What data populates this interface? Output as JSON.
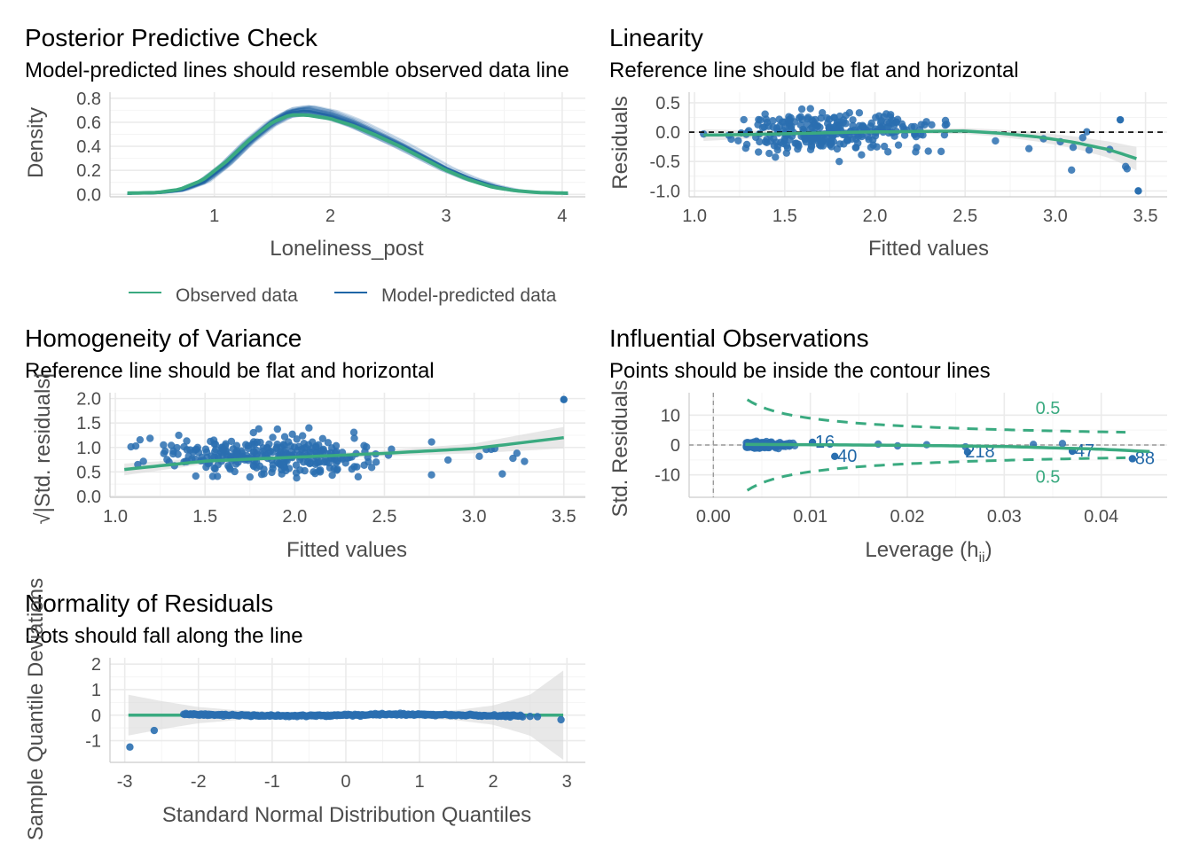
{
  "colors": {
    "observed": "#3aaa80",
    "predicted": "#1f66a6",
    "points": "#2a6fb0",
    "ci_band": "#d9d9d9",
    "contour": "#3aaa80"
  },
  "chart_data": [
    {
      "id": "ppc",
      "type": "line",
      "title": "Posterior Predictive Check",
      "subtitle": "Model-predicted lines should resemble observed data line",
      "xlabel": "Loneliness_post",
      "ylabel": "Density",
      "xlim": [
        0.1,
        4.2
      ],
      "ylim": [
        -0.02,
        0.85
      ],
      "xticks": [
        1,
        2,
        3,
        4
      ],
      "yticks": [
        0.0,
        0.2,
        0.4,
        0.6,
        0.8
      ],
      "ytick_labels": [
        "0.0",
        "0.2",
        "0.4",
        "0.6",
        "0.8"
      ],
      "legend": {
        "position": "bottom",
        "entries": [
          "Observed data",
          "Model-predicted data"
        ]
      },
      "series": [
        {
          "name": "Observed data",
          "x": [
            0.25,
            0.5,
            0.7,
            0.9,
            1.1,
            1.3,
            1.5,
            1.65,
            1.8,
            2.0,
            2.2,
            2.4,
            2.6,
            2.8,
            3.0,
            3.2,
            3.4,
            3.6,
            3.8,
            4.05
          ],
          "y": [
            0.01,
            0.015,
            0.04,
            0.12,
            0.27,
            0.45,
            0.6,
            0.66,
            0.66,
            0.63,
            0.57,
            0.49,
            0.4,
            0.3,
            0.2,
            0.12,
            0.06,
            0.03,
            0.015,
            0.01
          ]
        },
        {
          "name": "Model-predicted data",
          "x": [
            0.25,
            0.5,
            0.7,
            0.9,
            1.1,
            1.3,
            1.5,
            1.65,
            1.8,
            2.0,
            2.2,
            2.4,
            2.6,
            2.8,
            3.0,
            3.2,
            3.4,
            3.6,
            3.8,
            4.05
          ],
          "y": [
            0.005,
            0.01,
            0.03,
            0.1,
            0.25,
            0.44,
            0.6,
            0.68,
            0.7,
            0.66,
            0.59,
            0.5,
            0.41,
            0.31,
            0.21,
            0.13,
            0.07,
            0.03,
            0.015,
            0.005
          ]
        }
      ]
    },
    {
      "id": "linearity",
      "type": "scatter",
      "title": "Linearity",
      "subtitle": "Reference line should be flat and horizontal",
      "xlabel": "Fitted values",
      "ylabel": "Residuals",
      "xlim": [
        0.97,
        3.62
      ],
      "ylim": [
        -1.1,
        0.68
      ],
      "xticks": [
        1.0,
        1.5,
        2.0,
        2.5,
        3.0,
        3.5
      ],
      "xtick_labels": [
        "1.0",
        "1.5",
        "2.0",
        "2.5",
        "3.0",
        "3.5"
      ],
      "yticks": [
        -1.0,
        -0.5,
        0.0,
        0.5
      ],
      "ytick_labels": [
        "-1.0",
        "-0.5",
        "0.0",
        "0.5"
      ],
      "reference_line": 0.0,
      "smooth": {
        "x": [
          1.05,
          1.3,
          1.6,
          1.9,
          2.2,
          2.5,
          2.7,
          2.9,
          3.1,
          3.3,
          3.45
        ],
        "y": [
          -0.05,
          -0.04,
          -0.02,
          0.0,
          0.01,
          0.02,
          -0.02,
          -0.08,
          -0.17,
          -0.3,
          -0.45
        ],
        "band": [
          0.1,
          0.07,
          0.04,
          0.04,
          0.04,
          0.05,
          0.06,
          0.08,
          0.1,
          0.14,
          0.2
        ]
      },
      "points_generated": {
        "n": 300,
        "x_range": [
          1.05,
          3.45
        ],
        "spread": 0.33
      }
    },
    {
      "id": "homogeneity",
      "type": "scatter",
      "title": "Homogeneity of Variance",
      "subtitle": "Reference line should be flat and horizontal",
      "xlabel": "Fitted values",
      "ylabel": "√|Std. residuals|",
      "xlim": [
        0.97,
        3.62
      ],
      "ylim": [
        -0.02,
        2.12
      ],
      "xticks": [
        1.0,
        1.5,
        2.0,
        2.5,
        3.0,
        3.5
      ],
      "xtick_labels": [
        "1.0",
        "1.5",
        "2.0",
        "2.5",
        "3.0",
        "3.5"
      ],
      "yticks": [
        0.0,
        0.5,
        1.0,
        1.5,
        2.0
      ],
      "ytick_labels": [
        "0.0",
        "0.5",
        "1.0",
        "1.5",
        "2.0"
      ],
      "smooth": {
        "x": [
          1.05,
          1.5,
          2.0,
          2.5,
          3.0,
          3.5
        ],
        "y": [
          0.55,
          0.72,
          0.8,
          0.88,
          0.98,
          1.2
        ],
        "band": [
          0.12,
          0.06,
          0.05,
          0.06,
          0.1,
          0.22
        ]
      },
      "points_generated": {
        "n": 300,
        "x_range": [
          1.05,
          3.5
        ],
        "center": 0.85,
        "spread": 0.38
      }
    },
    {
      "id": "influential",
      "type": "scatter",
      "title": "Influential Observations",
      "subtitle": "Points should be inside the contour lines",
      "xlabel": "Leverage (h",
      "xlabel_sub": "ii",
      "xlabel_close": ")",
      "ylabel": "Std. Residuals",
      "xlim": [
        -0.0025,
        0.0468
      ],
      "ylim": [
        -17.5,
        17.5
      ],
      "xticks": [
        0.0,
        0.01,
        0.02,
        0.03,
        0.04
      ],
      "xtick_labels": [
        "0.00",
        "0.01",
        "0.02",
        "0.03",
        "0.04"
      ],
      "yticks": [
        -10,
        0,
        10
      ],
      "ytick_labels": [
        "-10",
        "0",
        "10"
      ],
      "contour_labels": [
        {
          "text": "0.5",
          "x": 0.0345,
          "y": 12.5
        },
        {
          "text": "0.5",
          "x": 0.0345,
          "y": -10.5
        }
      ],
      "labeled_points": [
        {
          "label": "16",
          "x": 0.0115,
          "y": 1.5
        },
        {
          "label": "40",
          "x": 0.0138,
          "y": -3.2
        },
        {
          "label": "218",
          "x": 0.0275,
          "y": -1.8
        },
        {
          "label": "47",
          "x": 0.0383,
          "y": -1.5
        },
        {
          "label": "88",
          "x": 0.0445,
          "y": -4.0
        }
      ],
      "smooth": {
        "x": [
          0.0033,
          0.01,
          0.02,
          0.03,
          0.04,
          0.045
        ],
        "y": [
          0.2,
          0.1,
          -0.1,
          -0.5,
          -1.4,
          -2.2
        ]
      },
      "points_generated": {
        "n": 300,
        "x_range": [
          0.0033,
          0.016
        ],
        "spread": 1.1
      }
    },
    {
      "id": "normality",
      "type": "scatter",
      "title": "Normality of Residuals",
      "subtitle": "Dots should fall along the line",
      "xlabel": "Standard Normal Distribution Quantiles",
      "ylabel": "Sample Quantile Deviations",
      "xlim": [
        -3.2,
        3.25
      ],
      "ylim": [
        -1.85,
        2.25
      ],
      "xticks": [
        -3,
        -2,
        -1,
        0,
        1,
        2,
        3
      ],
      "xtick_labels": [
        "-3",
        "-2",
        "-1",
        "0",
        "1",
        "2",
        "3"
      ],
      "yticks": [
        -1,
        0,
        1,
        2
      ],
      "ytick_labels": [
        "-1",
        "0",
        "1",
        "2"
      ],
      "reference_line": 0.0,
      "band": {
        "x": [
          -2.95,
          -2.5,
          -2.0,
          -1.5,
          -1.0,
          -0.5,
          0,
          0.5,
          1.0,
          1.5,
          2.0,
          2.5,
          2.95
        ],
        "half": [
          0.8,
          0.55,
          0.32,
          0.2,
          0.13,
          0.1,
          0.09,
          0.1,
          0.13,
          0.2,
          0.38,
          0.8,
          1.75
        ]
      },
      "extreme_points": [
        {
          "x": -2.93,
          "y": -1.25
        },
        {
          "x": -2.6,
          "y": -0.6
        },
        {
          "x": 2.5,
          "y": -0.05
        },
        {
          "x": 2.6,
          "y": -0.06
        },
        {
          "x": 2.92,
          "y": -0.18
        }
      ],
      "points_generated": {
        "n": 300,
        "x_range": [
          -2.2,
          2.4
        ]
      }
    }
  ]
}
